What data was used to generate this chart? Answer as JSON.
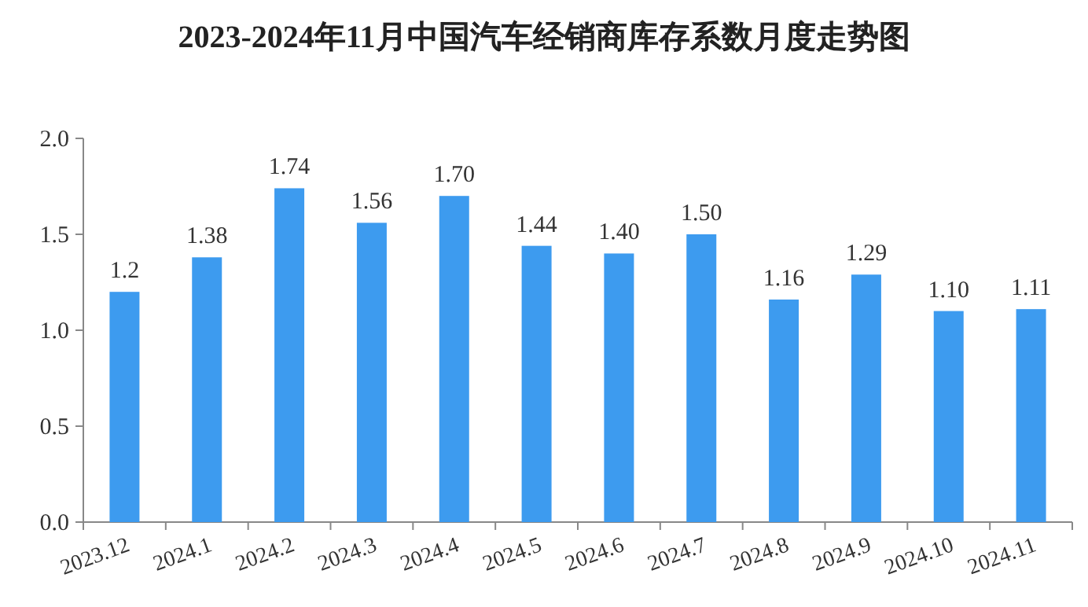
{
  "chart_data": {
    "type": "bar",
    "title": "2023-2024年11月中国汽车经销商库存系数月度走势图",
    "categories": [
      "2023.12",
      "2024.1",
      "2024.2",
      "2024.3",
      "2024.4",
      "2024.5",
      "2024.6",
      "2024.7",
      "2024.8",
      "2024.9",
      "2024.10",
      "2024.11"
    ],
    "series": [
      {
        "color": "#3d9bef",
        "values": [
          1.2,
          1.38,
          1.74,
          1.56,
          1.7,
          1.44,
          1.4,
          1.5,
          1.16,
          1.29,
          1.1,
          1.11
        ],
        "value_labels": [
          "1.2",
          "1.38",
          "1.74",
          "1.56",
          "1.70",
          "1.44",
          "1.40",
          "1.50",
          "1.16",
          "1.29",
          "1.10",
          "1.11"
        ]
      }
    ],
    "ylim": [
      0,
      2
    ],
    "yticks": [
      {
        "value": 0,
        "label": "0.0"
      },
      {
        "value": 0.5,
        "label": "0.5"
      },
      {
        "value": 1,
        "label": "1.0"
      },
      {
        "value": 1.5,
        "label": "1.5"
      },
      {
        "value": 2,
        "label": "2.0"
      }
    ],
    "grid": false
  }
}
